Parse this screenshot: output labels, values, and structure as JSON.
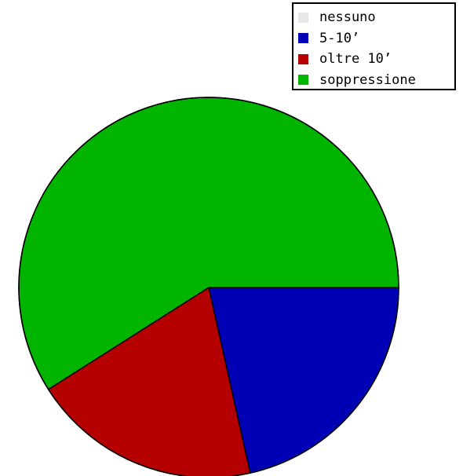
{
  "chart_data": {
    "type": "pie",
    "title": "",
    "start_angle_deg": 0,
    "direction": "clockwise",
    "legend_position": "top-right",
    "series": [
      {
        "name": "nessuno",
        "value": 0,
        "color": "#e8e8e8"
      },
      {
        "name": "5-10’",
        "value": 21.5,
        "color": "#0000b4"
      },
      {
        "name": "oltre 10’",
        "value": 19.5,
        "color": "#b40000"
      },
      {
        "name": "soppressione",
        "value": 59.0,
        "color": "#00b400"
      }
    ]
  },
  "legend": {
    "items": [
      {
        "label": "nessuno",
        "color": "#e8e8e8"
      },
      {
        "label": "5-10’",
        "color": "#0000b4"
      },
      {
        "label": "oltre 10’",
        "color": "#b40000"
      },
      {
        "label": "soppressione",
        "color": "#00b400"
      }
    ]
  }
}
